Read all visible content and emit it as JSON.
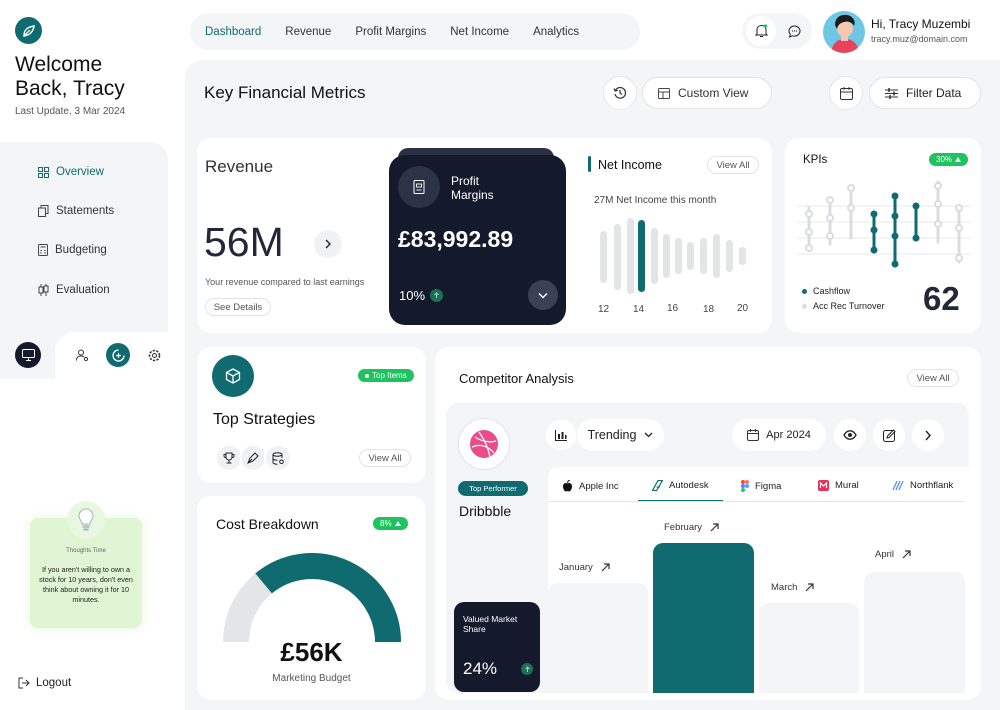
{
  "sidebar": {
    "welcome_line1": "Welcome",
    "welcome_line2": "Back, Tracy",
    "last_update": "Last Update, 3 Mar 2024",
    "nav": [
      {
        "label": "Overview",
        "active": true
      },
      {
        "label": "Statements"
      },
      {
        "label": "Budgeting"
      },
      {
        "label": "Evaluation"
      }
    ],
    "thought": {
      "title": "Thoughts Time",
      "text": "If you aren't willing to own a stock for 10 years, don't even think about owning it for 10 minutes."
    },
    "logout": "Logout"
  },
  "topnav": {
    "tabs": [
      "Dashboard",
      "Revenue",
      "Profit Margins",
      "Net Income",
      "Analytics"
    ]
  },
  "user": {
    "greeting": "Hi, Tracy Muzembi",
    "email": "tracy.muz@domain.com"
  },
  "header": {
    "title": "Key Financial Metrics",
    "custom_view": "Custom View",
    "filter": "Filter Data"
  },
  "revenue": {
    "title": "Revenue",
    "value": "56M",
    "caption": "Your revenue compared to last earnings",
    "details": "See Details"
  },
  "profit": {
    "title_line1": "Profit",
    "title_line2": "Margins",
    "value": "£83,992.89",
    "percent": "10%"
  },
  "net_income": {
    "title": "Net Income",
    "view_all": "View All",
    "subtitle": "27M Net Income this month",
    "x_labels": [
      "12",
      "14",
      "16",
      "18",
      "20"
    ]
  },
  "kpis": {
    "title": "KPIs",
    "badge": "30%",
    "legend": [
      "Cashflow",
      "Acc Rec Turnover"
    ],
    "value": "62"
  },
  "strategies": {
    "badge": "Top Items",
    "title": "Top Strategies",
    "view_all": "View All"
  },
  "cost": {
    "title": "Cost Breakdown",
    "badge": "8%",
    "value": "£56K",
    "label": "Marketing Budget",
    "fill_fraction": 0.82
  },
  "competitor": {
    "title": "Competitor Analysis",
    "view_all": "View All",
    "top_performer": "Top Performer",
    "performer_name": "Dribbble",
    "share_label": "Valued Market Share",
    "share_value": "24%",
    "trending": "Trending",
    "date": "Apr 2024",
    "companies": [
      "Apple Inc",
      "Autodesk",
      "Figma",
      "Mural",
      "Northflank"
    ],
    "active_company": "Autodesk",
    "months": [
      "January",
      "February",
      "March",
      "April"
    ]
  },
  "colors": {
    "teal": "#0f6b70",
    "navy": "#141a2c",
    "green": "#1ec25f",
    "panel": "#f4f5f6"
  }
}
